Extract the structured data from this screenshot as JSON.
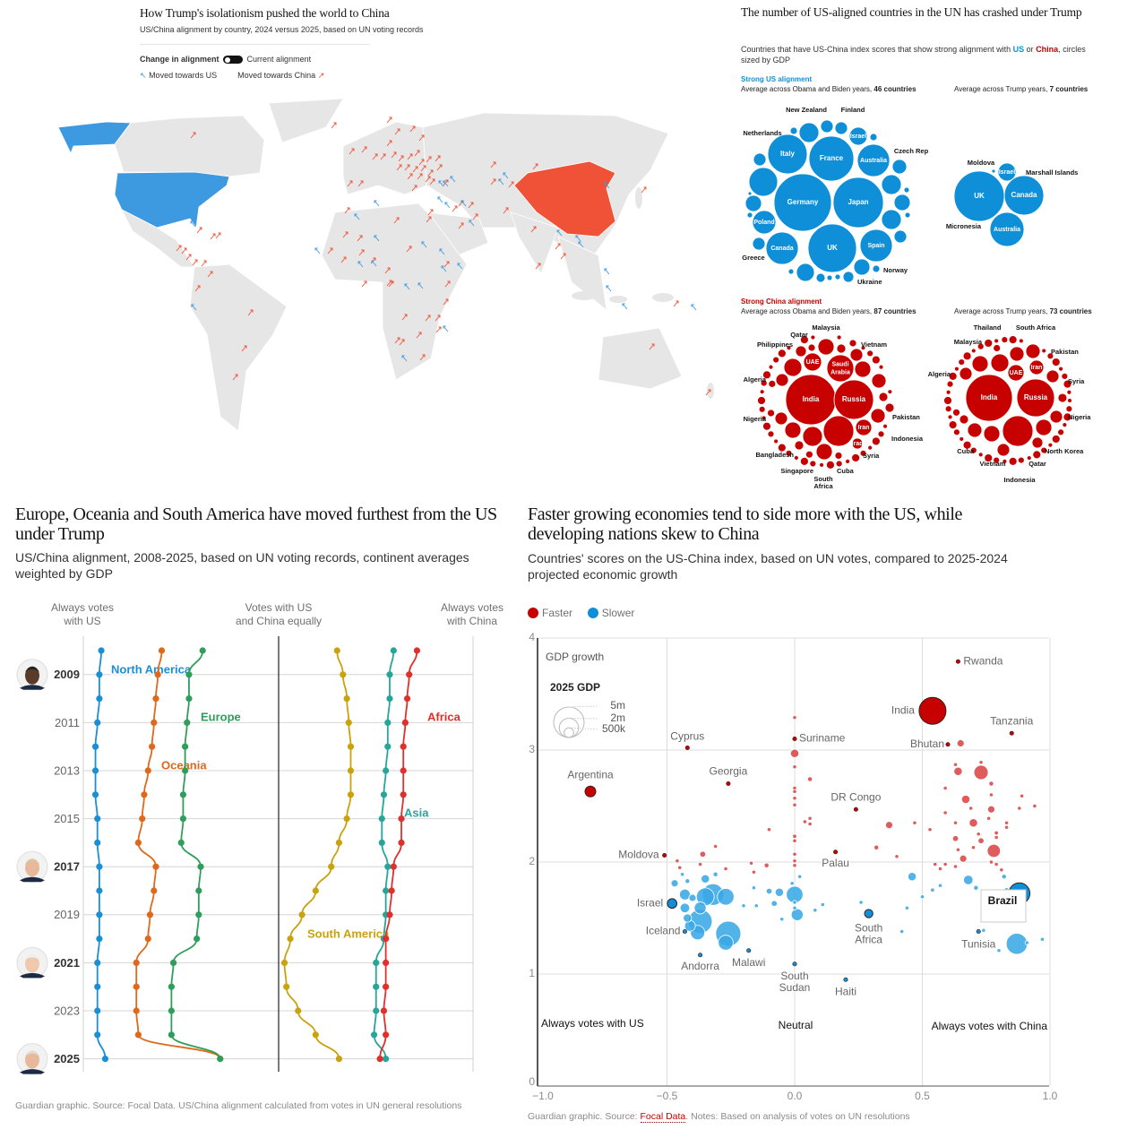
{
  "map": {
    "title": "How Trump's isolationism pushed the world to China",
    "subtitle": "US/China alignment by country, 2024 versus 2025, based on UN voting records",
    "legend": {
      "change_label": "Change in alignment",
      "current_label": "Current alignment",
      "toward_us": "Moved towards US",
      "toward_china": "Moved towards China"
    },
    "colors": {
      "us": "#3d9ae0",
      "china": "#ef5236",
      "land": "#e6e6e6",
      "border": "#ffffff"
    }
  },
  "bubbles": {
    "title": "The number of US-aligned countries in the UN has crashed under Trump",
    "desc_prefix": "Countries that have US-China index scores that show strong alignment with ",
    "us_word": "US",
    "or_word": " or ",
    "china_word": "China",
    "desc_suffix": ", circles sized by GDP",
    "us_heading": "Strong US alignment",
    "china_heading": "Strong China alignment",
    "colors": {
      "us": "#0f8fd8",
      "china": "#c70000"
    },
    "panels": [
      {
        "subtitle": "Average across Obama and Biden years, ",
        "count": "46 countries",
        "inner_labels": [
          "Italy",
          "France",
          "Australia",
          "Germany",
          "Japan",
          "Poland",
          "Canada",
          "UK",
          "Spain",
          "Israel"
        ],
        "outer_labels": [
          "New Zealand",
          "Finland",
          "Netherlands",
          "Czech Rep",
          "Greece",
          "Norway",
          "Ukraine"
        ]
      },
      {
        "subtitle": "Average across Trump years, ",
        "count": "7 countries",
        "inner_labels": [
          "UK",
          "Canada",
          "Australia",
          "Israel"
        ],
        "outer_labels": [
          "Moldova",
          "Marshall Islands",
          "Micronesia"
        ]
      },
      {
        "subtitle": "Average across Obama and Biden years, ",
        "count": "87 countries",
        "inner_labels": [
          "India",
          "Russia",
          "Saudi Arabia",
          "UAE",
          "Iran",
          "Iraq"
        ],
        "outer_labels": [
          "Malaysia",
          "Qatar",
          "Philippines",
          "Vietnam",
          "Algeria",
          "Nigeria",
          "Pakistan",
          "Indonesia",
          "Syria",
          "Bangladesh",
          "Cuba",
          "Singapore",
          "South Africa"
        ]
      },
      {
        "subtitle": "Average across Trump years, ",
        "count": "73 countries",
        "inner_labels": [
          "India",
          "Russia",
          "UAE",
          "Iran"
        ],
        "outer_labels": [
          "Thailand",
          "South Africa",
          "Malaysia",
          "Pakistan",
          "Algeria",
          "Syria",
          "Nigeria",
          "Cuba",
          "North Korea",
          "Vietnam",
          "Qatar",
          "Indonesia"
        ]
      }
    ]
  },
  "continents": {
    "title": "Europe, Oceania and South America have moved furthest from the US under Trump",
    "subtitle": "US/China alignment, 2008-2025, based on UN voting records, continent averages weighted by GDP",
    "axis_labels": [
      "Always votes\nwith US",
      "Votes with US\nand China equally",
      "Always votes\nwith China"
    ],
    "footer": "Guardian graphic. Source: Focal Data. US/China alignment calculated from votes in UN general resolutions"
  },
  "growth": {
    "title": "Faster growing economies tend to side more with the US, while developing nations skew to China",
    "subtitle": "Countries' scores on the US-China index, based on UN votes, compared to 2025-2024 projected economic growth",
    "footer_prefix": "Guardian graphic. Source: ",
    "footer_source": "Focal Data",
    "footer_suffix": ". Notes: Based on analysis of votes on UN resolutions"
  },
  "chart_data": [
    {
      "type": "line",
      "title": "Europe, Oceania and South America have moved furthest from the US under Trump",
      "x_axis": "US/China alignment",
      "xlim": [
        -1,
        1
      ],
      "years": [
        2008,
        2009,
        2010,
        2011,
        2012,
        2013,
        2014,
        2015,
        2016,
        2017,
        2018,
        2019,
        2020,
        2021,
        2022,
        2023,
        2024,
        2025
      ],
      "year_tick_labels": [
        "2009",
        "2011",
        "2013",
        "2015",
        "2017",
        "2019",
        "2021",
        "2023",
        "2025"
      ],
      "bold_years": [
        "2009",
        "2017",
        "2021",
        "2025"
      ],
      "grid": true,
      "series": [
        {
          "name": "North America",
          "color": "#1a8fd6",
          "values": [
            -0.91,
            -0.92,
            -0.92,
            -0.93,
            -0.94,
            -0.94,
            -0.94,
            -0.93,
            -0.93,
            -0.92,
            -0.92,
            -0.92,
            -0.92,
            -0.93,
            -0.93,
            -0.93,
            -0.93,
            -0.89
          ]
        },
        {
          "name": "Oceania",
          "color": "#e0681a",
          "values": [
            -0.6,
            -0.62,
            -0.63,
            -0.64,
            -0.65,
            -0.67,
            -0.69,
            -0.7,
            -0.72,
            -0.63,
            -0.64,
            -0.66,
            -0.67,
            -0.73,
            -0.73,
            -0.73,
            -0.72,
            -0.3
          ]
        },
        {
          "name": "Europe",
          "color": "#2e9e5b",
          "values": [
            -0.39,
            -0.46,
            -0.46,
            -0.47,
            -0.48,
            -0.48,
            -0.49,
            -0.49,
            -0.5,
            -0.4,
            -0.41,
            -0.41,
            -0.42,
            -0.54,
            -0.55,
            -0.55,
            -0.55,
            -0.3
          ]
        },
        {
          "name": "South America",
          "color": "#c9a20e",
          "values": [
            0.3,
            0.33,
            0.35,
            0.36,
            0.37,
            0.37,
            0.37,
            0.35,
            0.31,
            0.27,
            0.19,
            0.12,
            0.06,
            0.03,
            0.04,
            0.1,
            0.19,
            0.31
          ]
        },
        {
          "name": "Asia",
          "color": "#26a69a",
          "values": [
            0.59,
            0.57,
            0.57,
            0.56,
            0.56,
            0.55,
            0.54,
            0.53,
            0.53,
            0.56,
            0.55,
            0.55,
            0.54,
            0.5,
            0.5,
            0.5,
            0.49,
            0.55
          ]
        },
        {
          "name": "Africa",
          "color": "#e0302b",
          "values": [
            0.71,
            0.67,
            0.66,
            0.65,
            0.64,
            0.64,
            0.64,
            0.63,
            0.63,
            0.59,
            0.58,
            0.57,
            0.55,
            0.55,
            0.55,
            0.54,
            0.55,
            0.52
          ]
        }
      ]
    },
    {
      "type": "scatter",
      "title": "Faster growing economies tend to side more with the US, while developing nations skew to China",
      "ylabel": "GDP growth",
      "xlim": [
        -1,
        1
      ],
      "ylim": [
        0,
        4
      ],
      "x_tick_labels": [
        "−1.0",
        "−0.5",
        "0.0",
        "0.5",
        "1.0"
      ],
      "x_ticks": [
        -1,
        -0.5,
        0,
        0.5,
        1
      ],
      "y_tick_labels": [
        "0",
        "1",
        "2",
        "3",
        "4"
      ],
      "y_ticks": [
        0,
        1,
        2,
        3,
        4
      ],
      "grid": true,
      "legend": [
        {
          "name": "Faster",
          "color": "#c70000"
        },
        {
          "name": "Slower",
          "color": "#0f8fd8"
        }
      ],
      "legend_position": "top-left",
      "size_legend": {
        "title": "2025 GDP",
        "labels": [
          "5m",
          "2m",
          "500k"
        ],
        "values": [
          5,
          2,
          0.5
        ]
      },
      "region_labels": [
        "Always votes with US",
        "Neutral",
        "Always votes with China"
      ],
      "colors": {
        "faster_light": "#d94545",
        "slower_light": "#3aa8e6"
      },
      "labelled_points": [
        {
          "name": "Rwanda",
          "x": 0.64,
          "y": 3.79,
          "gdp": 0.03,
          "group": "Faster"
        },
        {
          "name": "India",
          "x": 0.54,
          "y": 3.35,
          "gdp": 3.9,
          "group": "Faster"
        },
        {
          "name": "Tanzania",
          "x": 0.85,
          "y": 3.15,
          "gdp": 0.05,
          "group": "Faster"
        },
        {
          "name": "Bhutan",
          "x": 0.6,
          "y": 3.05,
          "gdp": 0.03,
          "group": "Faster"
        },
        {
          "name": "Cyprus",
          "x": -0.42,
          "y": 3.02,
          "gdp": 0.04,
          "group": "Faster"
        },
        {
          "name": "Suriname",
          "x": 0.0,
          "y": 3.1,
          "gdp": 0.03,
          "group": "Faster"
        },
        {
          "name": "Argentina",
          "x": -0.8,
          "y": 2.63,
          "gdp": 0.62,
          "group": "Faster"
        },
        {
          "name": "Georgia",
          "x": -0.26,
          "y": 2.7,
          "gdp": 0.04,
          "group": "Faster"
        },
        {
          "name": "DR Congo",
          "x": 0.24,
          "y": 2.47,
          "gdp": 0.07,
          "group": "Faster"
        },
        {
          "name": "Moldova",
          "x": -0.51,
          "y": 2.06,
          "gdp": 0.03,
          "group": "Faster"
        },
        {
          "name": "Palau",
          "x": 0.16,
          "y": 2.09,
          "gdp": 0.03,
          "group": "Faster"
        },
        {
          "name": "Israel",
          "x": -0.48,
          "y": 1.63,
          "gdp": 0.49,
          "group": "Slower"
        },
        {
          "name": "Iceland",
          "x": -0.43,
          "y": 1.38,
          "gdp": 0.04,
          "group": "Slower"
        },
        {
          "name": "Andorra",
          "x": -0.37,
          "y": 1.17,
          "gdp": 0.03,
          "group": "Slower"
        },
        {
          "name": "Malawi",
          "x": -0.18,
          "y": 1.21,
          "gdp": 0.03,
          "group": "Slower"
        },
        {
          "name": "South Sudan",
          "x": 0.0,
          "y": 1.09,
          "gdp": 0.03,
          "group": "Slower"
        },
        {
          "name": "Haiti",
          "x": 0.2,
          "y": 0.95,
          "gdp": 0.03,
          "group": "Slower"
        },
        {
          "name": "South Africa",
          "x": 0.29,
          "y": 1.54,
          "gdp": 0.38,
          "group": "Slower"
        },
        {
          "name": "Tunisia",
          "x": 0.72,
          "y": 1.38,
          "gdp": 0.05,
          "group": "Slower"
        },
        {
          "name": "Brazil",
          "x": 0.88,
          "y": 1.72,
          "gdp": 2.4,
          "group": "Slower"
        }
      ],
      "faster_points": [
        [
          0,
          3.29,
          0.03
        ],
        [
          0,
          2.97,
          0.38
        ],
        [
          0,
          2.85,
          0.05
        ],
        [
          0.06,
          2.74,
          0.12
        ],
        [
          0,
          2.66,
          0.03
        ],
        [
          0,
          2.63,
          0.03
        ],
        [
          0,
          2.57,
          0.03
        ],
        [
          0,
          2.51,
          0.03
        ],
        [
          0.04,
          2.36,
          0.05
        ],
        [
          0.06,
          2.39,
          0.07
        ],
        [
          0.06,
          2.34,
          0.05
        ],
        [
          -0.1,
          2.29,
          0.03
        ],
        [
          0,
          2.23,
          0.09
        ],
        [
          0,
          2.19,
          0.07
        ],
        [
          0,
          2.07,
          0.03
        ],
        [
          0,
          2.01,
          0.03
        ],
        [
          0,
          1.97,
          0.03
        ],
        [
          -0.31,
          2.14,
          0.07
        ],
        [
          -0.36,
          2.07,
          0.19
        ],
        [
          -0.46,
          2.01,
          0.07
        ],
        [
          -0.45,
          1.95,
          0.07
        ],
        [
          -0.37,
          1.98,
          0.05
        ],
        [
          -0.27,
          1.94,
          0.03
        ],
        [
          -0.17,
          1.99,
          0.05
        ],
        [
          -0.16,
          1.91,
          0.05
        ],
        [
          -0.11,
          1.97,
          0.12
        ],
        [
          0.37,
          2.33,
          0.28
        ],
        [
          0.32,
          2.13,
          0.12
        ],
        [
          0.4,
          2.05,
          0.05
        ],
        [
          0.47,
          2.35,
          0.03
        ],
        [
          0.53,
          2.29,
          0.03
        ],
        [
          0.59,
          2.66,
          0.03
        ],
        [
          0.59,
          2.44,
          0.03
        ],
        [
          0.63,
          2.35,
          0.05
        ],
        [
          0.65,
          3.06,
          0.28
        ],
        [
          0.64,
          2.81,
          0.38
        ],
        [
          0.63,
          2.87,
          0.03
        ],
        [
          0.73,
          2.8,
          1.1
        ],
        [
          0.73,
          2.89,
          0.05
        ],
        [
          0.77,
          2.7,
          0.12
        ],
        [
          0.77,
          2.6,
          0.05
        ],
        [
          0.89,
          2.59,
          0.05
        ],
        [
          0.88,
          2.48,
          0.05
        ],
        [
          0.94,
          2.5,
          0.05
        ],
        [
          0.67,
          2.56,
          0.38
        ],
        [
          0.69,
          2.48,
          0.05
        ],
        [
          0.77,
          2.47,
          0.28
        ],
        [
          0.76,
          2.39,
          0.03
        ],
        [
          0.7,
          2.35,
          0.38
        ],
        [
          0.83,
          2.35,
          0.05
        ],
        [
          0.83,
          2.31,
          0.05
        ],
        [
          0.72,
          2.25,
          0.07
        ],
        [
          0.79,
          2.26,
          0.09
        ],
        [
          0.79,
          2.22,
          0.05
        ],
        [
          0.63,
          2.21,
          0.19
        ],
        [
          0.73,
          2.19,
          0.19
        ],
        [
          0.64,
          2.11,
          0.07
        ],
        [
          0.7,
          2.13,
          0.07
        ],
        [
          0.78,
          2.1,
          0.93
        ],
        [
          0.66,
          2.03,
          0.28
        ],
        [
          0.77,
          2.0,
          0.07
        ],
        [
          0.79,
          1.98,
          0.07
        ],
        [
          0.81,
          1.93,
          0.05
        ],
        [
          0.55,
          1.98,
          0.05
        ],
        [
          0.59,
          1.98,
          0.07
        ],
        [
          0.57,
          1.94,
          0.03
        ],
        [
          0.63,
          1.96,
          0.05
        ]
      ],
      "slower_points": [
        [
          0.02,
          1.87,
          0.03
        ],
        [
          -0.01,
          1.81,
          0.07
        ],
        [
          0,
          1.71,
          1.5
        ],
        [
          0,
          1.64,
          0.07
        ],
        [
          0,
          1.59,
          0.07
        ],
        [
          0.01,
          1.53,
          0.77
        ],
        [
          -0.1,
          1.74,
          0.19
        ],
        [
          -0.06,
          1.73,
          0.38
        ],
        [
          -0.08,
          1.63,
          0.19
        ],
        [
          -0.16,
          1.77,
          0.07
        ],
        [
          -0.2,
          1.61,
          0.05
        ],
        [
          -0.15,
          1.61,
          0.03
        ],
        [
          -0.05,
          1.49,
          0.05
        ],
        [
          0.08,
          1.57,
          0.03
        ],
        [
          0.11,
          1.62,
          0.03
        ],
        [
          0.26,
          1.64,
          0.03
        ],
        [
          0.46,
          1.87,
          0.38
        ],
        [
          0.44,
          1.59,
          0.05
        ],
        [
          0.42,
          1.38,
          0.03
        ],
        [
          0.5,
          1.69,
          0.03
        ],
        [
          0.54,
          1.75,
          0.09
        ],
        [
          0.57,
          1.79,
          0.05
        ],
        [
          0.68,
          1.84,
          0.49
        ],
        [
          0.71,
          1.77,
          0.12
        ],
        [
          0.82,
          1.87,
          0.12
        ],
        [
          0.83,
          1.75,
          0.12
        ],
        [
          0.74,
          1.39,
          0.05
        ],
        [
          0.87,
          1.27,
          2.4
        ],
        [
          0.91,
          1.28,
          0.07
        ],
        [
          0.97,
          1.31,
          0.07
        ],
        [
          0.8,
          1.21,
          0.07
        ],
        [
          -0.26,
          1.36,
          3.4
        ],
        [
          -0.27,
          1.28,
          1.2
        ],
        [
          -0.27,
          1.69,
          1.5
        ],
        [
          -0.32,
          1.71,
          2.5
        ],
        [
          -0.35,
          1.85,
          0.38
        ],
        [
          -0.31,
          1.89,
          0.12
        ],
        [
          -0.47,
          1.81,
          0.28
        ],
        [
          -0.44,
          1.89,
          0.07
        ],
        [
          -0.42,
          1.83,
          0.12
        ],
        [
          -0.43,
          1.71,
          0.62
        ],
        [
          -0.4,
          1.68,
          0.28
        ],
        [
          -0.35,
          1.69,
          1.7
        ],
        [
          -0.37,
          1.59,
          0.77
        ],
        [
          -0.43,
          1.59,
          0.49
        ],
        [
          -0.42,
          1.5,
          0.38
        ],
        [
          -0.41,
          1.43,
          0.62
        ],
        [
          -0.37,
          1.47,
          3.1
        ],
        [
          -0.38,
          1.37,
          1.1
        ]
      ]
    }
  ]
}
